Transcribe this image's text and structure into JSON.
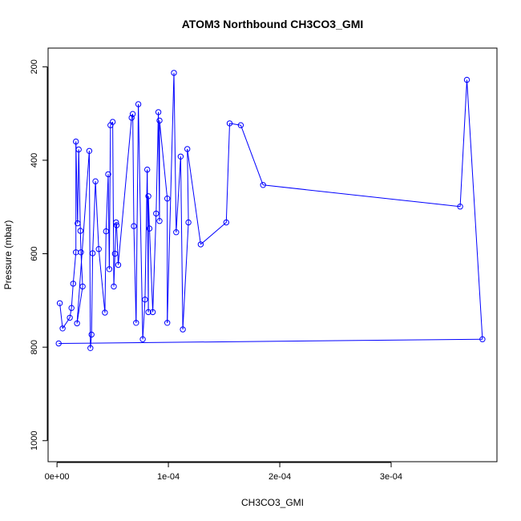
{
  "chart_data": {
    "type": "line",
    "title": "ATOM3 Northbound CH3CO3_GMI",
    "xlabel": "CH3CO3_GMI",
    "ylabel": "Pressure (mbar)",
    "xlim": [
      -8e-06,
      0.000395
    ],
    "ylim": [
      1045,
      160
    ],
    "y_reversed": true,
    "x_ticks": [
      0,
      0.0001,
      0.0002,
      0.0003
    ],
    "x_tick_labels": [
      "0e+00",
      "1e-04",
      "2e-04",
      "3e-04"
    ],
    "y_ticks": [
      200,
      400,
      600,
      800,
      1000
    ],
    "y_tick_labels": [
      "200",
      "400",
      "600",
      "800",
      "1000"
    ],
    "series_color": "#0000ff",
    "marker": "open-circle",
    "grid": false,
    "series": [
      {
        "points": [
          [
            2.5e-06,
            706
          ],
          [
            5e-06,
            760
          ],
          [
            1.15e-05,
            737
          ],
          [
            1.3e-05,
            716
          ],
          [
            1.45e-05,
            664
          ],
          [
            1.7e-05,
            597
          ],
          [
            1.7e-05,
            360
          ],
          [
            1.85e-05,
            535
          ],
          [
            1.95e-05,
            377
          ],
          [
            2.1e-05,
            551
          ],
          [
            2.15e-05,
            597
          ],
          [
            2.3e-05,
            670
          ],
          [
            1.8e-05,
            749
          ],
          [
            2.9e-05,
            380
          ],
          [
            3e-05,
            802
          ],
          [
            3.1e-05,
            773
          ],
          [
            3.2e-05,
            599
          ],
          [
            3.45e-05,
            445
          ],
          [
            3.75e-05,
            590
          ],
          [
            4.3e-05,
            726
          ],
          [
            4.4e-05,
            552
          ],
          [
            4.6e-05,
            430
          ],
          [
            4.7e-05,
            633
          ],
          [
            4.8e-05,
            325
          ],
          [
            5e-05,
            318
          ],
          [
            5.1e-05,
            670
          ],
          [
            5.2e-05,
            600
          ],
          [
            5.3e-05,
            533
          ],
          [
            5.35e-05,
            539
          ],
          [
            5.5e-05,
            624
          ],
          [
            6.7e-05,
            309
          ],
          [
            6.8e-05,
            301
          ],
          [
            6.9e-05,
            541
          ],
          [
            7.1e-05,
            748
          ],
          [
            7.3e-05,
            280
          ],
          [
            7.7e-05,
            783
          ],
          [
            7.9e-05,
            698
          ],
          [
            8.1e-05,
            420
          ],
          [
            8.2e-05,
            725
          ],
          [
            8.2e-05,
            477
          ],
          [
            8.3e-05,
            546
          ],
          [
            8.6e-05,
            725
          ],
          [
            8.9e-05,
            514
          ],
          [
            9.1e-05,
            297
          ],
          [
            9.2e-05,
            530
          ],
          [
            9.2e-05,
            315
          ],
          [
            9.9e-05,
            482
          ],
          [
            9.9e-05,
            748
          ],
          [
            0.000105,
            213
          ],
          [
            0.000107,
            554
          ],
          [
            0.000111,
            392
          ],
          [
            0.000113,
            762
          ],
          [
            0.000118,
            533
          ],
          [
            0.000117,
            376
          ],
          [
            0.000129,
            580
          ],
          [
            0.000152,
            533
          ],
          [
            0.000155,
            321
          ],
          [
            0.000165,
            325
          ],
          [
            0.000185,
            453
          ],
          [
            0.000362,
            499
          ],
          [
            0.000368,
            228
          ],
          [
            0.000382,
            783
          ],
          [
            1.5e-06,
            792
          ]
        ]
      }
    ]
  }
}
